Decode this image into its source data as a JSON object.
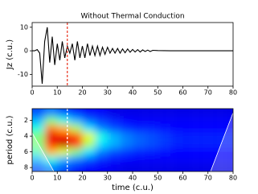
{
  "chart_data": [
    {
      "type": "line",
      "title": "Without Thermal Conduction",
      "ylabel": "Jz (c.u.)",
      "x": [
        0,
        1,
        2,
        3,
        4,
        5,
        6,
        7,
        8,
        9,
        10,
        11,
        12,
        13,
        14,
        15,
        16,
        17,
        18,
        19,
        20,
        21,
        22,
        23,
        24,
        25,
        26,
        27,
        28,
        29,
        30,
        31,
        32,
        33,
        34,
        35,
        36,
        37,
        38,
        39,
        40,
        41,
        42,
        43,
        44,
        45,
        46,
        47,
        48,
        50,
        55,
        60,
        65,
        70,
        75,
        80
      ],
      "y": [
        0,
        0,
        0.5,
        -1,
        -14,
        4,
        10,
        -5,
        6,
        -6,
        3,
        -4,
        4,
        -3,
        2,
        -1,
        3,
        -4,
        4,
        -3,
        2,
        -3,
        3,
        -2,
        2,
        -2,
        2,
        -2,
        1.5,
        -1.5,
        1.5,
        -1,
        1,
        -1,
        1,
        -1,
        0.8,
        -0.8,
        0.8,
        -0.6,
        0.6,
        -0.5,
        0.5,
        -0.5,
        0.4,
        -0.3,
        0.3,
        -0.3,
        0.2,
        0.1,
        0,
        0,
        0,
        0,
        0,
        0
      ],
      "color": "#000000",
      "vline": 14,
      "vline_color": "#e8321e",
      "xlim": [
        0,
        80
      ],
      "xticks": [
        0,
        10,
        20,
        30,
        40,
        50,
        60,
        70,
        80
      ],
      "ylim": [
        -15,
        12
      ],
      "yticks": [
        -10,
        0,
        10
      ]
    },
    {
      "type": "heatmap",
      "xlabel": "time (c.u.)",
      "ylabel": "period (c.u.)",
      "colormap": "jet",
      "x": [
        2.5,
        7.5,
        12.5,
        17.5,
        22.5,
        27.5,
        32.5,
        37.5,
        42.5,
        47.5,
        52.5,
        57.5,
        62.5,
        67.5,
        72.5,
        77.5
      ],
      "y": [
        1,
        2,
        3,
        4,
        5,
        6,
        7,
        8
      ],
      "z": [
        [
          0.2,
          0.25,
          0.2,
          0.15,
          0.12,
          0.12,
          0.1,
          0.1,
          0.1,
          0.1,
          0.1,
          0.1,
          0.1,
          0.1,
          0.1,
          0.1
        ],
        [
          0.3,
          0.5,
          0.4,
          0.3,
          0.22,
          0.18,
          0.15,
          0.13,
          0.12,
          0.12,
          0.12,
          0.12,
          0.12,
          0.12,
          0.12,
          0.12
        ],
        [
          0.4,
          0.75,
          0.7,
          0.55,
          0.35,
          0.25,
          0.2,
          0.17,
          0.15,
          0.15,
          0.14,
          0.13,
          0.13,
          0.13,
          0.13,
          0.13
        ],
        [
          0.5,
          0.9,
          0.85,
          0.8,
          0.6,
          0.4,
          0.3,
          0.25,
          0.22,
          0.2,
          0.18,
          0.16,
          0.15,
          0.15,
          0.15,
          0.15
        ],
        [
          0.5,
          0.85,
          0.95,
          0.85,
          0.55,
          0.35,
          0.3,
          0.25,
          0.22,
          0.2,
          0.18,
          0.16,
          0.15,
          0.15,
          0.15,
          0.15
        ],
        [
          0.45,
          0.7,
          0.6,
          0.5,
          0.35,
          0.25,
          0.2,
          0.18,
          0.16,
          0.15,
          0.14,
          0.13,
          0.13,
          0.13,
          0.13,
          0.13
        ],
        [
          0.3,
          0.4,
          0.3,
          0.25,
          0.2,
          0.16,
          0.14,
          0.13,
          0.12,
          0.12,
          0.12,
          0.12,
          0.12,
          0.12,
          0.12,
          0.12
        ],
        [
          0.2,
          0.25,
          0.2,
          0.15,
          0.13,
          0.12,
          0.11,
          0.1,
          0.1,
          0.1,
          0.1,
          0.1,
          0.1,
          0.1,
          0.1,
          0.1
        ]
      ],
      "vline": 14,
      "vline_color": "#ffffff",
      "xlim": [
        0,
        80
      ],
      "xticks": [
        0,
        10,
        20,
        30,
        40,
        50,
        60,
        70,
        80
      ],
      "ylim": [
        8.5,
        0.5
      ],
      "yticks": [
        2,
        4,
        6,
        8
      ]
    }
  ]
}
